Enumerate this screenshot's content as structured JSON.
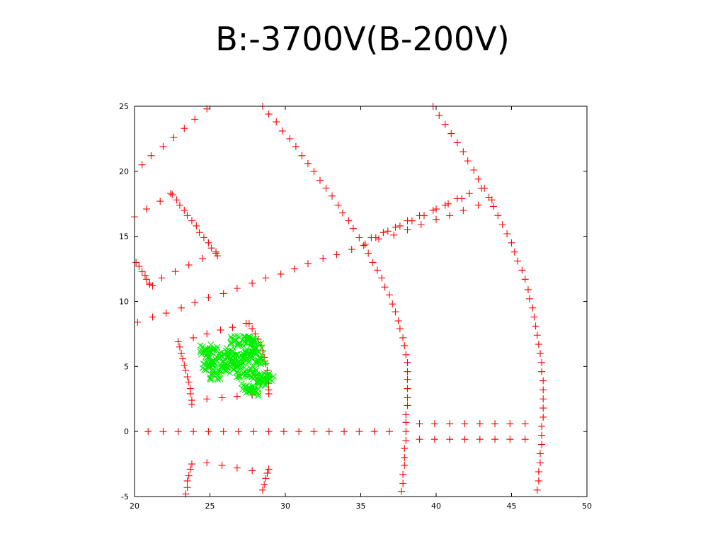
{
  "slide": {
    "title": "B:-3700V(B-200V)"
  },
  "colors": {
    "red_series": "#ff0000",
    "green_series": "#00ee00",
    "axes": "#000000",
    "background": "#ffffff"
  },
  "chart_data": {
    "type": "scatter",
    "title": "",
    "xlabel": "",
    "ylabel": "",
    "xlim": [
      20,
      50
    ],
    "ylim": [
      -5,
      25
    ],
    "xticks": [
      "20",
      "25",
      "30",
      "35",
      "40",
      "45",
      "50"
    ],
    "yticks": [
      "25",
      "20",
      "15",
      "10",
      "5",
      "0",
      "-5"
    ],
    "xtick_values": [
      20,
      25,
      30,
      35,
      40,
      45,
      50
    ],
    "ytick_values": [
      25,
      20,
      15,
      10,
      5,
      0,
      -5
    ],
    "grid": false,
    "legend": "none",
    "series": [
      {
        "marker": "+",
        "color": "#ff0000",
        "points": [
          [
            20.0,
            16.5
          ],
          [
            20.5,
            20.5
          ],
          [
            21.1,
            21.2
          ],
          [
            21.9,
            21.9
          ],
          [
            22.6,
            22.6
          ],
          [
            23.3,
            23.3
          ],
          [
            24.0,
            24.0
          ],
          [
            24.8,
            24.8
          ],
          [
            20.8,
            17.1
          ],
          [
            21.7,
            17.7
          ],
          [
            22.4,
            18.3
          ],
          [
            22.5,
            18.2
          ],
          [
            22.8,
            17.8
          ],
          [
            23.0,
            17.4
          ],
          [
            23.3,
            17.0
          ],
          [
            23.5,
            16.6
          ],
          [
            23.8,
            16.2
          ],
          [
            24.1,
            15.8
          ],
          [
            24.3,
            15.3
          ],
          [
            24.6,
            14.9
          ],
          [
            24.9,
            14.5
          ],
          [
            25.1,
            14.1
          ],
          [
            25.4,
            13.7
          ],
          [
            25.5,
            13.5
          ],
          [
            20.1,
            13.0
          ],
          [
            20.3,
            12.7
          ],
          [
            20.5,
            12.3
          ],
          [
            20.7,
            12.0
          ],
          [
            20.8,
            11.7
          ],
          [
            21.0,
            11.4
          ],
          [
            21.2,
            11.2
          ],
          [
            21.0,
            11.3
          ],
          [
            21.8,
            11.8
          ],
          [
            22.7,
            12.3
          ],
          [
            23.6,
            12.8
          ],
          [
            24.5,
            13.3
          ],
          [
            25.4,
            13.8
          ],
          [
            20.2,
            8.4
          ],
          [
            21.2,
            8.8
          ],
          [
            22.1,
            9.1
          ],
          [
            23.1,
            9.5
          ],
          [
            24.0,
            9.9
          ],
          [
            24.9,
            10.3
          ],
          [
            25.9,
            10.6
          ],
          [
            26.8,
            11.0
          ],
          [
            27.8,
            11.4
          ],
          [
            28.7,
            11.8
          ],
          [
            29.7,
            12.1
          ],
          [
            30.6,
            12.5
          ],
          [
            31.5,
            12.9
          ],
          [
            32.5,
            13.3
          ],
          [
            33.4,
            13.6
          ],
          [
            34.4,
            14.0
          ],
          [
            35.3,
            14.4
          ],
          [
            36.2,
            14.8
          ],
          [
            37.2,
            15.1
          ],
          [
            38.1,
            15.5
          ],
          [
            39.0,
            15.9
          ],
          [
            40.0,
            16.3
          ],
          [
            40.9,
            16.6
          ],
          [
            41.8,
            17.0
          ],
          [
            42.8,
            17.4
          ],
          [
            43.7,
            17.8
          ],
          [
            35.7,
            14.9
          ],
          [
            36.5,
            15.3
          ],
          [
            37.3,
            15.7
          ],
          [
            38.1,
            16.2
          ],
          [
            38.9,
            16.6
          ],
          [
            39.8,
            17.0
          ],
          [
            40.6,
            17.4
          ],
          [
            41.4,
            17.9
          ],
          [
            42.2,
            18.3
          ],
          [
            43.0,
            18.7
          ],
          [
            36.0,
            14.9
          ],
          [
            36.8,
            15.4
          ],
          [
            37.6,
            15.8
          ],
          [
            38.4,
            16.2
          ],
          [
            39.2,
            16.6
          ],
          [
            40.0,
            17.1
          ],
          [
            40.8,
            17.5
          ],
          [
            41.7,
            17.9
          ],
          [
            28.5,
            25.0
          ],
          [
            28.9,
            24.4
          ],
          [
            29.4,
            23.8
          ],
          [
            29.8,
            23.1
          ],
          [
            30.3,
            22.5
          ],
          [
            30.7,
            21.9
          ],
          [
            31.1,
            21.2
          ],
          [
            31.5,
            20.6
          ],
          [
            31.9,
            20.0
          ],
          [
            32.3,
            19.3
          ],
          [
            32.7,
            18.7
          ],
          [
            33.1,
            18.1
          ],
          [
            33.5,
            17.4
          ],
          [
            33.8,
            16.8
          ],
          [
            34.2,
            16.2
          ],
          [
            34.5,
            15.6
          ],
          [
            34.9,
            14.9
          ],
          [
            35.2,
            14.3
          ],
          [
            35.5,
            13.7
          ],
          [
            35.8,
            13.0
          ],
          [
            36.1,
            12.4
          ],
          [
            36.4,
            11.8
          ],
          [
            36.6,
            11.1
          ],
          [
            36.9,
            10.5
          ],
          [
            37.1,
            9.8
          ],
          [
            37.3,
            9.2
          ],
          [
            37.5,
            8.5
          ],
          [
            37.6,
            7.9
          ],
          [
            37.8,
            7.2
          ],
          [
            37.9,
            6.6
          ],
          [
            38.0,
            5.9
          ],
          [
            38.1,
            5.3
          ],
          [
            38.1,
            4.6
          ],
          [
            38.1,
            4.0
          ],
          [
            38.1,
            3.3
          ],
          [
            38.1,
            2.6
          ],
          [
            38.1,
            2.0
          ],
          [
            38.0,
            1.3
          ],
          [
            38.0,
            0.7
          ],
          [
            38.0,
            0.0
          ],
          [
            38.0,
            -0.7
          ],
          [
            37.9,
            -1.3
          ],
          [
            37.9,
            -2.0
          ],
          [
            37.9,
            -2.6
          ],
          [
            37.8,
            -3.3
          ],
          [
            37.8,
            -4.0
          ],
          [
            37.7,
            -4.6
          ],
          [
            39.8,
            25.0
          ],
          [
            40.2,
            24.3
          ],
          [
            40.6,
            23.6
          ],
          [
            41.0,
            22.9
          ],
          [
            41.4,
            22.2
          ],
          [
            41.8,
            21.5
          ],
          [
            42.1,
            20.8
          ],
          [
            42.5,
            20.1
          ],
          [
            42.8,
            19.4
          ],
          [
            43.2,
            18.7
          ],
          [
            43.5,
            18.0
          ],
          [
            43.8,
            17.3
          ],
          [
            44.1,
            16.6
          ],
          [
            44.4,
            15.9
          ],
          [
            44.7,
            15.2
          ],
          [
            45.0,
            14.5
          ],
          [
            45.2,
            13.8
          ],
          [
            45.4,
            13.1
          ],
          [
            45.7,
            12.4
          ],
          [
            45.9,
            11.7
          ],
          [
            46.1,
            10.9
          ],
          [
            46.2,
            10.2
          ],
          [
            46.4,
            9.5
          ],
          [
            46.5,
            8.8
          ],
          [
            46.6,
            8.1
          ],
          [
            46.7,
            7.4
          ],
          [
            46.8,
            6.7
          ],
          [
            46.9,
            6.0
          ],
          [
            47.0,
            5.3
          ],
          [
            47.0,
            4.6
          ],
          [
            47.1,
            3.9
          ],
          [
            47.1,
            3.2
          ],
          [
            47.1,
            2.5
          ],
          [
            47.1,
            1.8
          ],
          [
            47.1,
            1.1
          ],
          [
            47.0,
            0.4
          ],
          [
            47.0,
            -0.3
          ],
          [
            47.0,
            -1.0
          ],
          [
            46.9,
            -1.7
          ],
          [
            46.9,
            -2.4
          ],
          [
            46.8,
            -3.1
          ],
          [
            46.8,
            -3.8
          ],
          [
            46.7,
            -4.5
          ],
          [
            20.9,
            0.0
          ],
          [
            21.9,
            0.0
          ],
          [
            22.9,
            0.0
          ],
          [
            23.9,
            0.0
          ],
          [
            24.9,
            0.0
          ],
          [
            25.9,
            0.0
          ],
          [
            26.9,
            0.0
          ],
          [
            27.9,
            0.0
          ],
          [
            28.9,
            0.0
          ],
          [
            29.9,
            0.0
          ],
          [
            30.9,
            0.0
          ],
          [
            31.9,
            0.0
          ],
          [
            32.9,
            0.0
          ],
          [
            33.9,
            0.0
          ],
          [
            34.9,
            0.0
          ],
          [
            35.9,
            0.0
          ],
          [
            36.9,
            0.0
          ],
          [
            38.9,
            0.6
          ],
          [
            39.9,
            0.6
          ],
          [
            40.9,
            0.6
          ],
          [
            41.9,
            0.6
          ],
          [
            42.9,
            0.6
          ],
          [
            43.9,
            0.6
          ],
          [
            44.9,
            0.6
          ],
          [
            45.9,
            0.6
          ],
          [
            38.9,
            -0.6
          ],
          [
            39.9,
            -0.6
          ],
          [
            40.9,
            -0.6
          ],
          [
            41.9,
            -0.6
          ],
          [
            42.9,
            -0.6
          ],
          [
            43.9,
            -0.6
          ],
          [
            44.9,
            -0.6
          ],
          [
            45.9,
            -0.6
          ],
          [
            23.9,
            7.2
          ],
          [
            24.8,
            7.5
          ],
          [
            25.7,
            7.8
          ],
          [
            26.5,
            8.0
          ],
          [
            27.4,
            8.3
          ],
          [
            22.9,
            6.9
          ],
          [
            23.0,
            6.5
          ],
          [
            23.1,
            6.0
          ],
          [
            23.2,
            5.6
          ],
          [
            23.3,
            5.1
          ],
          [
            23.4,
            4.7
          ],
          [
            23.5,
            4.2
          ],
          [
            23.6,
            3.8
          ],
          [
            23.7,
            3.3
          ],
          [
            23.7,
            2.9
          ],
          [
            23.8,
            2.4
          ],
          [
            23.8,
            2.1
          ],
          [
            27.6,
            8.3
          ],
          [
            27.8,
            7.9
          ],
          [
            28.0,
            7.5
          ],
          [
            28.2,
            7.1
          ],
          [
            28.4,
            6.6
          ],
          [
            28.5,
            6.2
          ],
          [
            28.6,
            5.7
          ],
          [
            28.7,
            5.2
          ],
          [
            28.8,
            4.7
          ],
          [
            28.9,
            4.2
          ],
          [
            28.9,
            3.7
          ],
          [
            28.9,
            3.2
          ],
          [
            28.9,
            2.9
          ],
          [
            24.8,
            2.5
          ],
          [
            25.8,
            2.6
          ],
          [
            26.8,
            2.7
          ],
          [
            27.8,
            2.8
          ],
          [
            23.4,
            -4.8
          ],
          [
            23.5,
            -4.3
          ],
          [
            23.5,
            -3.8
          ],
          [
            23.6,
            -3.4
          ],
          [
            23.7,
            -2.9
          ],
          [
            23.8,
            -2.5
          ],
          [
            24.8,
            -2.4
          ],
          [
            25.8,
            -2.6
          ],
          [
            26.8,
            -2.8
          ],
          [
            27.8,
            -3.0
          ],
          [
            28.5,
            -4.5
          ],
          [
            28.6,
            -4.1
          ],
          [
            28.7,
            -3.6
          ],
          [
            28.8,
            -3.2
          ],
          [
            28.9,
            -2.9
          ]
        ]
      },
      {
        "marker": "x",
        "color": "#00ee00",
        "cluster": true,
        "points": [
          [
            24.7,
            6.3
          ],
          [
            25.2,
            5.4
          ],
          [
            25.8,
            5.8
          ],
          [
            26.0,
            4.7
          ],
          [
            26.5,
            6.2
          ],
          [
            26.9,
            5.1
          ],
          [
            27.3,
            6.9
          ],
          [
            27.6,
            6.0
          ],
          [
            27.9,
            7.1
          ],
          [
            27.1,
            4.4
          ],
          [
            27.8,
            4.5
          ],
          [
            28.2,
            4.2
          ],
          [
            28.6,
            3.9
          ],
          [
            28.9,
            4.1
          ],
          [
            28.0,
            3.1
          ],
          [
            27.5,
            3.3
          ],
          [
            25.4,
            4.4
          ],
          [
            26.3,
            5.3
          ],
          [
            27.2,
            5.7
          ],
          [
            28.1,
            6.4
          ],
          [
            25.1,
            6.1
          ],
          [
            26.7,
            7.0
          ],
          [
            28.3,
            5.6
          ],
          [
            24.9,
            5.0
          ]
        ]
      }
    ]
  }
}
